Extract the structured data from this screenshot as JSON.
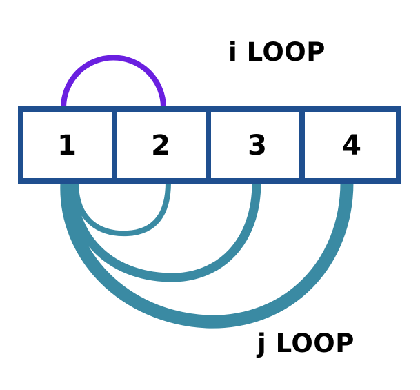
{
  "cells": [
    "1",
    "2",
    "3",
    "4"
  ],
  "labels": {
    "i_loop": "i LOOP",
    "j_loop": "j LOOP"
  },
  "colors": {
    "box_border": "#1f4f8f",
    "i_loop_arc": "#6a1fe0",
    "j_loop_arc": "#3a8aa3",
    "text": "#000000",
    "background": "#ffffff"
  }
}
